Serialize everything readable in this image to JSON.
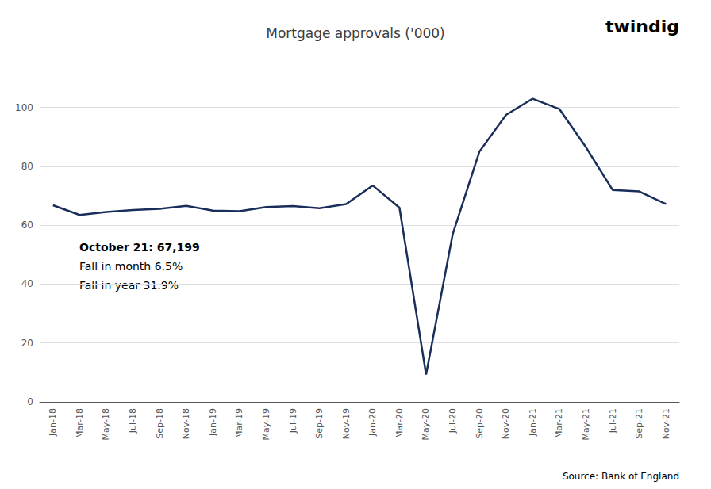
{
  "chart_data": {
    "type": "line",
    "title": "Mortgage approvals ('000)",
    "categories": [
      "Jan-18",
      "Mar-18",
      "May-18",
      "Jul-18",
      "Sep-18",
      "Nov-18",
      "Jan-19",
      "Mar-19",
      "May-19",
      "Jul-19",
      "Sep-19",
      "Nov-19",
      "Jan-20",
      "Mar-20",
      "May-20",
      "Jul-20",
      "Sep-20",
      "Nov-20",
      "Jan-21",
      "Mar-21",
      "May-21",
      "Jul-21",
      "Sep-21",
      "Nov-21"
    ],
    "values": [
      66.8,
      63.5,
      64.5,
      65.2,
      65.6,
      66.6,
      65.0,
      64.8,
      66.2,
      66.5,
      65.8,
      67.2,
      73.5,
      66.0,
      9.3,
      57.0,
      85.0,
      97.5,
      103.0,
      99.5,
      86.5,
      72.0,
      71.5,
      67.2
    ],
    "color": "#1a2e5a",
    "ylim": [
      0,
      115
    ],
    "yticks": [
      0,
      20,
      40,
      60,
      80,
      100
    ],
    "grid": true,
    "annotations": [
      "October 21: 67,199",
      "Fall in month 6.5%",
      "Fall in year 31.9%"
    ],
    "source": "Source: Bank of England",
    "logo": "twindig"
  }
}
